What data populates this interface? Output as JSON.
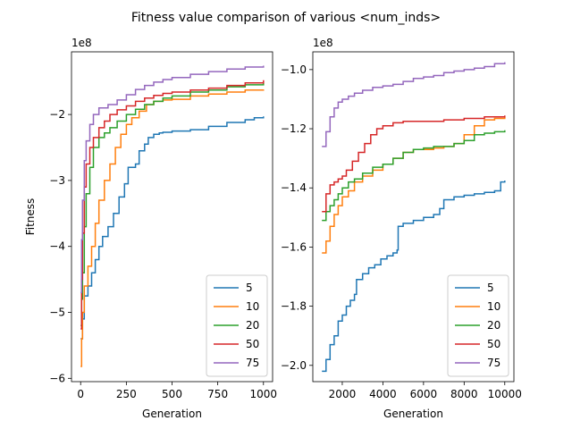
{
  "figure": {
    "title": "Fitness value comparison of various <num_inds>"
  },
  "chart_data": [
    {
      "type": "line",
      "xlabel": "Generation",
      "ylabel": "Fitness",
      "offset_text": "1e8",
      "xlim": [
        -50,
        1050
      ],
      "ylim": [
        -6.05,
        -1.05
      ],
      "xticks": [
        0,
        250,
        500,
        750,
        1000
      ],
      "xtick_labels": [
        "0",
        "250",
        "500",
        "750",
        "1000"
      ],
      "yticks": [
        -6,
        -5,
        -4,
        -3,
        -2
      ],
      "ytick_labels": [
        "−6",
        "−5",
        "−4",
        "−3",
        "−2"
      ],
      "legend_position": "lower right",
      "series": [
        {
          "name": "5",
          "color": "#1f77b4",
          "x": [
            0,
            10,
            20,
            40,
            60,
            80,
            100,
            120,
            150,
            180,
            210,
            240,
            260,
            300,
            320,
            350,
            370,
            400,
            430,
            450,
            500,
            600,
            700,
            800,
            900,
            950,
            1000
          ],
          "y": [
            -5.4,
            -5.1,
            -4.75,
            -4.6,
            -4.4,
            -4.2,
            -4.0,
            -3.85,
            -3.7,
            -3.5,
            -3.25,
            -3.05,
            -2.8,
            -2.75,
            -2.55,
            -2.45,
            -2.35,
            -2.3,
            -2.28,
            -2.27,
            -2.25,
            -2.23,
            -2.18,
            -2.12,
            -2.08,
            -2.05,
            -2.03
          ]
        },
        {
          "name": "10",
          "color": "#ff7f0e",
          "x": [
            0,
            5,
            10,
            20,
            40,
            60,
            80,
            100,
            130,
            160,
            190,
            220,
            250,
            280,
            320,
            360,
            400,
            450,
            500,
            600,
            700,
            800,
            900,
            1000
          ],
          "y": [
            -5.82,
            -5.4,
            -5.0,
            -4.6,
            -4.3,
            -4.0,
            -3.65,
            -3.3,
            -3.0,
            -2.75,
            -2.5,
            -2.3,
            -2.15,
            -2.05,
            -1.95,
            -1.85,
            -1.8,
            -1.78,
            -1.77,
            -1.72,
            -1.69,
            -1.66,
            -1.63,
            -1.62
          ]
        },
        {
          "name": "20",
          "color": "#2ca02c",
          "x": [
            0,
            5,
            10,
            20,
            30,
            50,
            70,
            100,
            130,
            160,
            200,
            250,
            300,
            350,
            400,
            450,
            500,
            600,
            700,
            800,
            900,
            1000
          ],
          "y": [
            -5.2,
            -4.8,
            -4.4,
            -3.7,
            -3.2,
            -2.8,
            -2.5,
            -2.35,
            -2.28,
            -2.2,
            -2.1,
            -2.0,
            -1.92,
            -1.85,
            -1.8,
            -1.75,
            -1.72,
            -1.66,
            -1.63,
            -1.58,
            -1.55,
            -1.53
          ]
        },
        {
          "name": "50",
          "color": "#d62728",
          "x": [
            0,
            5,
            10,
            20,
            30,
            50,
            70,
            100,
            130,
            160,
            200,
            250,
            300,
            350,
            400,
            450,
            500,
            600,
            700,
            800,
            900,
            1000
          ],
          "y": [
            -5.25,
            -4.5,
            -3.8,
            -3.1,
            -2.75,
            -2.5,
            -2.35,
            -2.2,
            -2.1,
            -2.0,
            -1.93,
            -1.87,
            -1.8,
            -1.75,
            -1.71,
            -1.68,
            -1.66,
            -1.63,
            -1.6,
            -1.56,
            -1.52,
            -1.48
          ]
        },
        {
          "name": "75",
          "color": "#9467bd",
          "x": [
            0,
            5,
            10,
            20,
            30,
            50,
            70,
            100,
            150,
            200,
            250,
            300,
            350,
            400,
            450,
            500,
            600,
            700,
            800,
            900,
            1000
          ],
          "y": [
            -4.7,
            -3.9,
            -3.3,
            -2.7,
            -2.4,
            -2.15,
            -2.0,
            -1.9,
            -1.85,
            -1.78,
            -1.7,
            -1.62,
            -1.56,
            -1.51,
            -1.47,
            -1.44,
            -1.39,
            -1.35,
            -1.31,
            -1.28,
            -1.26
          ]
        }
      ]
    },
    {
      "type": "line",
      "xlabel": "Generation",
      "ylabel": "",
      "offset_text": "1e8",
      "xlim": [
        550,
        10450
      ],
      "ylim": [
        -2.055,
        -0.94
      ],
      "xticks": [
        2000,
        4000,
        6000,
        8000,
        10000
      ],
      "xtick_labels": [
        "2000",
        "4000",
        "6000",
        "8000",
        "10000"
      ],
      "yticks": [
        -2.0,
        -1.8,
        -1.6,
        -1.4,
        -1.2,
        -1.0
      ],
      "ytick_labels": [
        "−2.0",
        "−1.8",
        "−1.6",
        "−1.4",
        "−1.2",
        "−1.0"
      ],
      "legend_position": "lower right",
      "series": [
        {
          "name": "5",
          "color": "#1f77b4",
          "x": [
            1000,
            1200,
            1400,
            1600,
            1800,
            2000,
            2200,
            2400,
            2600,
            2700,
            3000,
            3300,
            3600,
            3900,
            4200,
            4500,
            4700,
            4750,
            5000,
            5500,
            6000,
            6500,
            6800,
            7000,
            7500,
            8000,
            8500,
            9000,
            9500,
            9800,
            10000
          ],
          "y": [
            -2.02,
            -1.98,
            -1.93,
            -1.9,
            -1.85,
            -1.83,
            -1.8,
            -1.78,
            -1.76,
            -1.71,
            -1.69,
            -1.67,
            -1.66,
            -1.64,
            -1.63,
            -1.62,
            -1.61,
            -1.53,
            -1.52,
            -1.51,
            -1.5,
            -1.49,
            -1.47,
            -1.44,
            -1.43,
            -1.425,
            -1.42,
            -1.415,
            -1.41,
            -1.38,
            -1.375
          ]
        },
        {
          "name": "10",
          "color": "#ff7f0e",
          "x": [
            1000,
            1200,
            1400,
            1600,
            1800,
            2000,
            2300,
            2600,
            3000,
            3500,
            4000,
            4500,
            5000,
            5500,
            6000,
            6500,
            7000,
            7500,
            8000,
            8500,
            9000,
            9500,
            10000
          ],
          "y": [
            -1.62,
            -1.58,
            -1.53,
            -1.49,
            -1.46,
            -1.43,
            -1.41,
            -1.38,
            -1.36,
            -1.34,
            -1.32,
            -1.3,
            -1.28,
            -1.27,
            -1.27,
            -1.265,
            -1.26,
            -1.25,
            -1.22,
            -1.19,
            -1.17,
            -1.165,
            -1.16
          ]
        },
        {
          "name": "20",
          "color": "#2ca02c",
          "x": [
            1000,
            1200,
            1400,
            1600,
            1800,
            2000,
            2300,
            2600,
            3000,
            3500,
            4000,
            4500,
            5000,
            5500,
            6000,
            6500,
            7000,
            7500,
            8000,
            8500,
            9000,
            9500,
            10000
          ],
          "y": [
            -1.51,
            -1.48,
            -1.46,
            -1.44,
            -1.42,
            -1.4,
            -1.38,
            -1.37,
            -1.35,
            -1.33,
            -1.32,
            -1.3,
            -1.28,
            -1.27,
            -1.265,
            -1.26,
            -1.26,
            -1.25,
            -1.24,
            -1.22,
            -1.215,
            -1.21,
            -1.205
          ]
        },
        {
          "name": "50",
          "color": "#d62728",
          "x": [
            1000,
            1200,
            1400,
            1600,
            1800,
            2000,
            2200,
            2500,
            2800,
            3100,
            3400,
            3700,
            4000,
            4500,
            5000,
            6000,
            7000,
            8000,
            9000,
            10000
          ],
          "y": [
            -1.48,
            -1.42,
            -1.39,
            -1.38,
            -1.37,
            -1.36,
            -1.34,
            -1.31,
            -1.28,
            -1.25,
            -1.22,
            -1.2,
            -1.19,
            -1.18,
            -1.175,
            -1.175,
            -1.17,
            -1.165,
            -1.16,
            -1.155
          ]
        },
        {
          "name": "75",
          "color": "#9467bd",
          "x": [
            1000,
            1200,
            1400,
            1600,
            1800,
            2000,
            2300,
            2600,
            3000,
            3500,
            4000,
            4500,
            5000,
            5500,
            6000,
            6500,
            7000,
            7500,
            8000,
            8500,
            9000,
            9500,
            10000
          ],
          "y": [
            -1.26,
            -1.21,
            -1.16,
            -1.13,
            -1.11,
            -1.1,
            -1.09,
            -1.08,
            -1.07,
            -1.06,
            -1.055,
            -1.05,
            -1.04,
            -1.03,
            -1.025,
            -1.02,
            -1.01,
            -1.005,
            -1.0,
            -0.995,
            -0.99,
            -0.98,
            -0.975
          ]
        }
      ]
    }
  ]
}
